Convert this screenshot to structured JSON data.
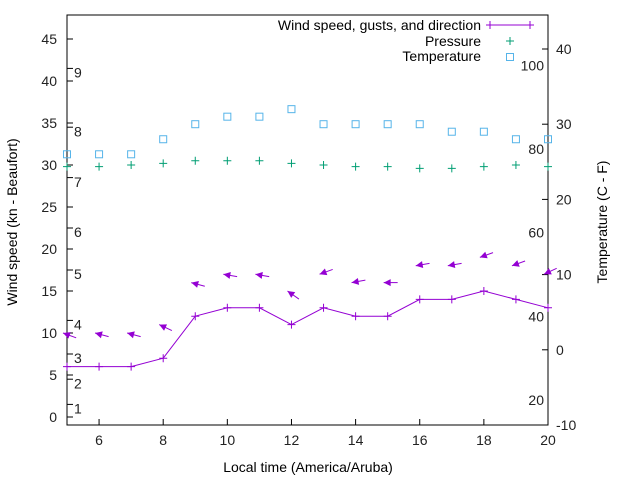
{
  "chart_data": {
    "type": "line",
    "xlabel": "Local time (America/Aruba)",
    "ylabel": "Wind speed (kn - Beaufort)",
    "y2label": "Temperature (C - F)",
    "xlim": [
      5,
      20
    ],
    "ylim": [
      -1,
      48
    ],
    "y2lim": [
      -10,
      45
    ],
    "x_ticks": [
      6,
      8,
      10,
      12,
      14,
      16,
      18,
      20
    ],
    "y_ticks": [
      0,
      5,
      10,
      15,
      20,
      25,
      30,
      35,
      40,
      45
    ],
    "y2_ticks": [
      -10,
      0,
      10,
      20,
      30,
      40
    ],
    "beaufort_labels": [
      {
        "label": "1",
        "kn": 1
      },
      {
        "label": "2",
        "kn": 4
      },
      {
        "label": "3",
        "kn": 7
      },
      {
        "label": "4",
        "kn": 11
      },
      {
        "label": "5",
        "kn": 17
      },
      {
        "label": "6",
        "kn": 22
      },
      {
        "label": "7",
        "kn": 28
      },
      {
        "label": "8",
        "kn": 34
      },
      {
        "label": "9",
        "kn": 41
      }
    ],
    "fahrenheit_labels": [
      {
        "label": "20",
        "c": -6.7
      },
      {
        "label": "40",
        "c": 4.4
      },
      {
        "label": "60",
        "c": 15.6
      },
      {
        "label": "80",
        "c": 26.7
      },
      {
        "label": "100",
        "c": 37.8
      }
    ],
    "legend": [
      "Wind speed, gusts, and direction",
      "Pressure",
      "Temperature"
    ],
    "legend_position": "top-right",
    "x": [
      5,
      6,
      7,
      8,
      9,
      10,
      11,
      12,
      13,
      14,
      15,
      16,
      17,
      18,
      19,
      20
    ],
    "series": [
      {
        "name": "Wind speed, gusts, and direction",
        "axis": "y",
        "color": "#9400d3",
        "values": [
          6,
          6,
          6,
          7,
          12,
          13,
          13,
          11,
          13,
          12,
          12,
          14,
          14,
          15,
          14,
          13
        ],
        "gusts": [
          10,
          10,
          10,
          11,
          16,
          17,
          17,
          15,
          17,
          16,
          16,
          18,
          18,
          19,
          18,
          17
        ],
        "direction_deg": [
          110,
          105,
          105,
          115,
          105,
          100,
          100,
          125,
          70,
          80,
          90,
          80,
          80,
          70,
          70,
          65
        ]
      },
      {
        "name": "Pressure",
        "axis": "y",
        "color": "#009e73",
        "values": [
          29.8,
          29.8,
          30.0,
          30.2,
          30.5,
          30.5,
          30.5,
          30.2,
          30.0,
          29.8,
          29.8,
          29.6,
          29.6,
          29.8,
          30.0,
          29.8
        ]
      },
      {
        "name": "Temperature",
        "axis": "y2",
        "color": "#56b4e9",
        "values": [
          26,
          26,
          26,
          28,
          30,
          31,
          31,
          32,
          30,
          30,
          30,
          30,
          29,
          29,
          28,
          28
        ]
      }
    ]
  }
}
